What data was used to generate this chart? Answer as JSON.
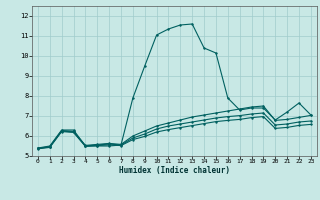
{
  "xlabel": "Humidex (Indice chaleur)",
  "background_color": "#c8e8e5",
  "grid_color": "#a0cccc",
  "line_color": "#006060",
  "xlim": [
    -0.5,
    23.5
  ],
  "ylim": [
    5.0,
    12.5
  ],
  "xticks": [
    0,
    1,
    2,
    3,
    4,
    5,
    6,
    7,
    8,
    9,
    10,
    11,
    12,
    13,
    14,
    15,
    16,
    17,
    18,
    19,
    20,
    21,
    22,
    23
  ],
  "yticks": [
    5,
    6,
    7,
    8,
    9,
    10,
    11,
    12
  ],
  "line1_x": [
    0,
    1,
    2,
    3,
    4,
    5,
    6,
    7,
    8,
    9,
    10,
    11,
    12,
    13,
    14,
    15,
    16,
    17,
    18,
    19,
    20,
    21,
    22,
    23
  ],
  "line1_y": [
    5.4,
    5.5,
    6.3,
    6.3,
    5.5,
    5.5,
    5.5,
    5.55,
    7.9,
    9.5,
    11.05,
    11.35,
    11.55,
    11.6,
    10.4,
    10.15,
    7.9,
    7.3,
    7.4,
    7.4,
    6.8,
    7.2,
    7.65,
    7.05
  ],
  "line2_x": [
    0,
    1,
    2,
    3,
    4,
    5,
    6,
    7,
    8,
    9,
    10,
    11,
    12,
    13,
    14,
    15,
    16,
    17,
    18,
    19,
    20,
    21,
    22,
    23
  ],
  "line2_y": [
    5.38,
    5.45,
    6.25,
    6.2,
    5.5,
    5.55,
    5.6,
    5.55,
    5.9,
    6.1,
    6.35,
    6.5,
    6.6,
    6.7,
    6.8,
    6.9,
    6.97,
    7.02,
    7.1,
    7.15,
    6.55,
    6.6,
    6.7,
    6.75
  ],
  "line3_x": [
    0,
    1,
    2,
    3,
    4,
    5,
    6,
    7,
    8,
    9,
    10,
    11,
    12,
    13,
    14,
    15,
    16,
    17,
    18,
    19,
    20,
    21,
    22,
    23
  ],
  "line3_y": [
    5.38,
    5.47,
    6.27,
    6.23,
    5.53,
    5.58,
    5.63,
    5.58,
    6.0,
    6.25,
    6.5,
    6.65,
    6.8,
    6.95,
    7.05,
    7.15,
    7.25,
    7.35,
    7.45,
    7.5,
    6.78,
    6.83,
    6.93,
    7.03
  ],
  "line4_x": [
    0,
    1,
    2,
    3,
    4,
    5,
    6,
    7,
    8,
    9,
    10,
    11,
    12,
    13,
    14,
    15,
    16,
    17,
    18,
    19,
    20,
    21,
    22,
    23
  ],
  "line4_y": [
    5.36,
    5.43,
    6.22,
    6.18,
    5.48,
    5.52,
    5.56,
    5.52,
    5.82,
    5.98,
    6.2,
    6.32,
    6.42,
    6.52,
    6.62,
    6.72,
    6.78,
    6.83,
    6.92,
    6.97,
    6.38,
    6.43,
    6.53,
    6.58
  ]
}
